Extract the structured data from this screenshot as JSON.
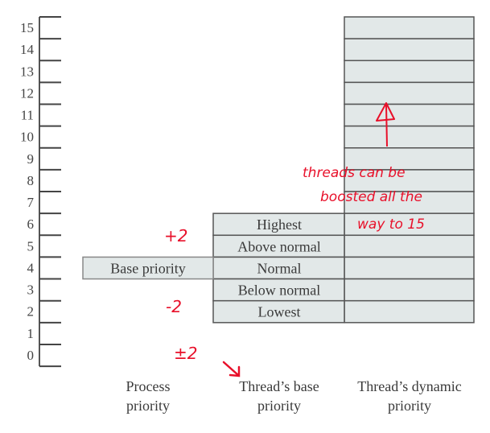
{
  "axis": {
    "min": 0,
    "max": 15,
    "ticks": [
      0,
      1,
      2,
      3,
      4,
      5,
      6,
      7,
      8,
      9,
      10,
      11,
      12,
      13,
      14,
      15
    ]
  },
  "colors": {
    "cell_fill": "#e2e8e8",
    "border": "#555555",
    "annotation": "#e8102a"
  },
  "process_priority": {
    "level": 4,
    "label": "Base priority"
  },
  "base_priority_levels": [
    {
      "level": 6,
      "label": "Highest"
    },
    {
      "level": 5,
      "label": "Above normal"
    },
    {
      "level": 4,
      "label": "Normal"
    },
    {
      "level": 3,
      "label": "Below normal"
    },
    {
      "level": 2,
      "label": "Lowest"
    }
  ],
  "dynamic_priority": {
    "min": 2,
    "max": 15
  },
  "column_labels": [
    {
      "line1": "Process",
      "line2": "priority"
    },
    {
      "line1": "Thread’s base",
      "line2": "priority"
    },
    {
      "line1": "Thread’s dynamic",
      "line2": "priority"
    }
  ],
  "annotations": {
    "plus": "+2",
    "minus": "-2",
    "plusminus": "±2",
    "boost_line1": "threads can be",
    "boost_line2": "boosted all the",
    "boost_line3": "way to 15"
  }
}
